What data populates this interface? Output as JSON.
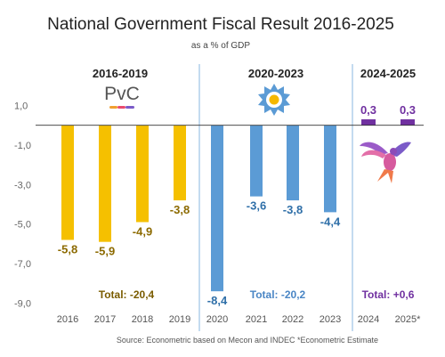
{
  "chart_data": {
    "type": "bar",
    "title": "National Government Fiscal Result 2016-2025",
    "subtitle": "as a % of GDP",
    "source": "Source: Econometric based on Mecon and INDEC *Econometric Estimate",
    "ylim": [
      -9.5,
      1.6
    ],
    "y_ticks": [
      1.0,
      -1.0,
      -3.0,
      -5.0,
      -7.0,
      -9.0
    ],
    "y_tick_labels": [
      "1,0",
      "-1,0",
      "-3,0",
      "-5,0",
      "-7,0",
      "-9,0"
    ],
    "grid": false,
    "categories": [
      "2016",
      "2017",
      "2018",
      "2019",
      "2020",
      "2021",
      "2022",
      "2023",
      "2024",
      "2025*"
    ],
    "values": [
      -5.8,
      -5.9,
      -4.9,
      -3.8,
      -8.4,
      -3.6,
      -3.8,
      -4.4,
      0.3,
      0.3
    ],
    "value_labels": [
      "-5,8",
      "-5,9",
      "-4,9",
      "-3,8",
      "-8,4",
      "-3,6",
      "-3,8",
      "-4,4",
      "0,3",
      "0,3"
    ],
    "groups": [
      {
        "period": "2016-2019",
        "logo_text": "PvC",
        "total": "Total: -20,4",
        "color": "#F5C000",
        "label_color": "#8C6A00",
        "total_color": "#7A5C00",
        "start": 0,
        "end": 3
      },
      {
        "period": "2020-2023",
        "logo_text": "",
        "total": "Total: -20,2",
        "color": "#5B9BD5",
        "label_color": "#2F6FA8",
        "total_color": "#4A86C5",
        "start": 4,
        "end": 7
      },
      {
        "period": "2024-2025",
        "logo_text": "",
        "total": "Total: +0,6",
        "color": "#7030A0",
        "label_color": "#7030A0",
        "total_color": "#7030A0",
        "start": 8,
        "end": 9
      }
    ],
    "colors": {
      "divider": "#9DC3E6",
      "axis_zero": "#333333",
      "tick_text": "#666666"
    }
  }
}
